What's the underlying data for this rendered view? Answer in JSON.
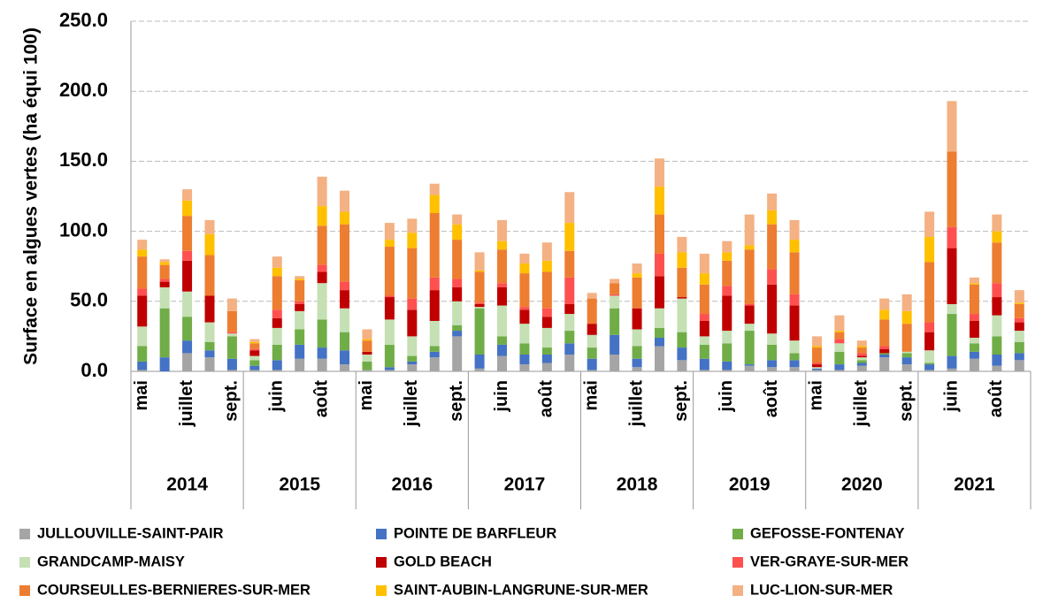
{
  "chart_data": {
    "type": "stacked_bar",
    "y_label": "Surface en algues vertes (ha équi 100)",
    "categories": [
      "mai",
      null,
      "juillet",
      null,
      "sept.",
      null,
      "juin",
      null,
      "août",
      null,
      "mai",
      null,
      "juillet",
      null,
      "sept.",
      null,
      "juin",
      null,
      "août",
      null,
      "mai",
      null,
      "juillet",
      null,
      "sept.",
      null,
      "juin",
      null,
      "août",
      null,
      "mai",
      null,
      "juillet",
      null,
      "sept.",
      null,
      "juin",
      null,
      "août",
      null
    ],
    "groups": [
      "2014",
      "2015",
      "2016",
      "2017",
      "2018",
      "2019",
      "2020",
      "2021"
    ],
    "series": [
      {
        "name": "JULLOUVILLE-SAINT-PAIR",
        "color": "#a5a5a5",
        "values": [
          1,
          0,
          13,
          10,
          1,
          1,
          1,
          9,
          9,
          5,
          1,
          1,
          5,
          10,
          25,
          2,
          11,
          5,
          6,
          12,
          1,
          12,
          3,
          18,
          8,
          1,
          1,
          4,
          3,
          3,
          1,
          1,
          4,
          10,
          5,
          1,
          2,
          9,
          4,
          8
        ]
      },
      {
        "name": "POINTE DE BARFLEUR",
        "color": "#4472c4",
        "values": [
          6,
          10,
          9,
          5,
          8,
          3,
          7,
          10,
          8,
          10,
          0,
          2,
          2,
          4,
          4,
          10,
          8,
          7,
          6,
          8,
          8,
          14,
          6,
          6,
          9,
          8,
          6,
          1,
          5,
          5,
          1,
          4,
          2,
          2,
          5,
          4,
          9,
          5,
          8,
          5
        ]
      },
      {
        "name": "GEFOSSE-FONTENAY",
        "color": "#70ad47",
        "values": [
          11,
          35,
          17,
          6,
          16,
          4,
          11,
          11,
          20,
          13,
          6,
          16,
          4,
          4,
          4,
          33,
          6,
          8,
          5,
          9,
          8,
          19,
          9,
          7,
          11,
          10,
          13,
          24,
          11,
          5,
          0,
          9,
          2,
          1,
          3,
          1,
          30,
          6,
          13,
          8
        ]
      },
      {
        "name": "GRANDCAMP-MAISY",
        "color": "#c5e0b4",
        "values": [
          14,
          15,
          18,
          14,
          2,
          3,
          12,
          13,
          26,
          17,
          5,
          18,
          14,
          18,
          17,
          1,
          22,
          14,
          14,
          12,
          9,
          9,
          12,
          14,
          24,
          6,
          9,
          5,
          8,
          9,
          1,
          6,
          2,
          0,
          1,
          9,
          7,
          4,
          15,
          8
        ]
      },
      {
        "name": "GOLD BEACH",
        "color": "#c00000",
        "values": [
          22,
          4,
          22,
          19,
          0,
          4,
          7,
          5,
          8,
          13,
          2,
          16,
          19,
          22,
          10,
          2,
          13,
          10,
          8,
          7,
          8,
          0,
          15,
          23,
          1,
          11,
          25,
          13,
          35,
          25,
          2,
          0,
          1,
          3,
          0,
          13,
          40,
          12,
          13,
          6
        ]
      },
      {
        "name": "VER-GRAYE-SUR-MER",
        "color": "#ff5050",
        "values": [
          5,
          2,
          7,
          0,
          1,
          1,
          6,
          2,
          5,
          6,
          0,
          1,
          8,
          9,
          6,
          1,
          3,
          2,
          6,
          19,
          0,
          1,
          0,
          16,
          0,
          5,
          7,
          1,
          11,
          8,
          1,
          3,
          2,
          2,
          0,
          7,
          15,
          5,
          10,
          3
        ]
      },
      {
        "name": "COURSEULLES-BERNIERES-SUR-MER",
        "color": "#ed7d31",
        "values": [
          23,
          10,
          25,
          29,
          15,
          4,
          24,
          15,
          28,
          41,
          8,
          35,
          36,
          46,
          28,
          22,
          24,
          24,
          26,
          19,
          18,
          8,
          22,
          28,
          21,
          21,
          18,
          39,
          32,
          30,
          11,
          5,
          4,
          19,
          20,
          43,
          54,
          21,
          29,
          10
        ]
      },
      {
        "name": "SAINT-AUBIN-LANGRUNE-SUR-MER",
        "color": "#ffc000",
        "values": [
          5,
          2,
          11,
          15,
          0,
          1,
          6,
          1,
          14,
          9,
          1,
          5,
          11,
          13,
          11,
          1,
          6,
          7,
          8,
          20,
          0,
          0,
          3,
          20,
          11,
          8,
          6,
          3,
          10,
          9,
          1,
          1,
          1,
          7,
          9,
          18,
          0,
          1,
          8,
          1
        ]
      },
      {
        "name": "LUC-LION-SUR-MER",
        "color": "#f4b183",
        "values": [
          7,
          2,
          8,
          10,
          9,
          2,
          8,
          2,
          21,
          15,
          7,
          12,
          10,
          8,
          7,
          13,
          15,
          7,
          13,
          22,
          4,
          3,
          7,
          20,
          11,
          14,
          8,
          22,
          12,
          14,
          7,
          11,
          4,
          8,
          12,
          18,
          36,
          4,
          12,
          9
        ]
      }
    ],
    "ylim": [
      0,
      250
    ],
    "yticks": [
      {
        "value": 0,
        "label": "0.0"
      },
      {
        "value": 50,
        "label": "50.0"
      },
      {
        "value": 100,
        "label": "100.0"
      },
      {
        "value": 150,
        "label": "150.0"
      },
      {
        "value": 200,
        "label": "200.0"
      },
      {
        "value": 250,
        "label": "250.0"
      }
    ],
    "grid": true
  }
}
